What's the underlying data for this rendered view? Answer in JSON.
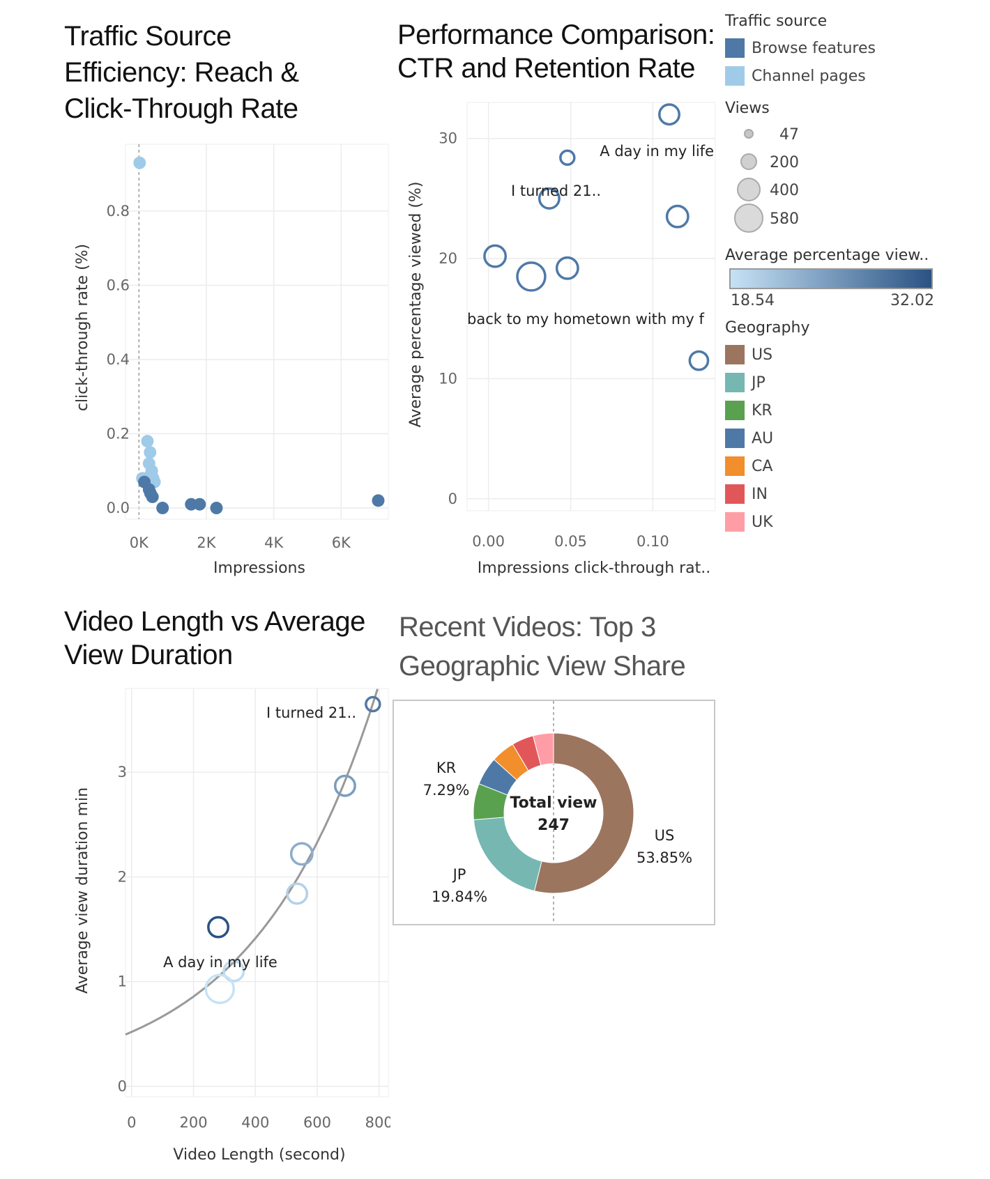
{
  "charts": {
    "traffic": {
      "title": "Traffic Source Efficiency: Reach & Click-Through Rate",
      "title_lines": [
        "Traffic Source",
        "Efficiency: Reach &",
        "Click-Through Rate"
      ],
      "xlabel": "Impressions",
      "ylabel": "click-through rate (%)",
      "x_ticks": [
        "0K",
        "2K",
        "4K",
        "6K"
      ],
      "y_ticks": [
        "0.0",
        "0.2",
        "0.4",
        "0.6",
        "0.8"
      ]
    },
    "performance": {
      "title_lines": [
        "Performance Comparison:",
        "CTR and Retention Rate"
      ],
      "xlabel": "Impressions click-through rat..",
      "ylabel": "Average percentage viewed (%)",
      "x_ticks": [
        "0.00",
        "0.05",
        "0.10"
      ],
      "y_ticks": [
        "0",
        "10",
        "20",
        "30"
      ],
      "annotations": [
        "A day in my life",
        "I turned 21..",
        "back to my hometown with my f"
      ]
    },
    "length": {
      "title_lines": [
        "Video Length vs Average",
        "View Duration"
      ],
      "xlabel": "Video Length (second)",
      "ylabel": "Average view duration min",
      "x_ticks": [
        "0",
        "200",
        "400",
        "600",
        "800"
      ],
      "y_ticks": [
        "0",
        "1",
        "2",
        "3"
      ],
      "annotations": [
        "I turned 21..",
        "A day in my life"
      ]
    },
    "geo": {
      "title_lines": [
        "Recent Videos: Top 3",
        "Geographic View Share"
      ],
      "center_label": "Total view",
      "center_value": "247",
      "labels": [
        {
          "name": "US",
          "pct": "53.85%"
        },
        {
          "name": "JP",
          "pct": "19.84%"
        },
        {
          "name": "KR",
          "pct": "7.29%"
        }
      ]
    }
  },
  "legend": {
    "traffic_title": "Traffic source",
    "traffic_items": [
      {
        "label": "Browse features",
        "color": "#4e79a7"
      },
      {
        "label": "Channel pages",
        "color": "#a0cbe8"
      }
    ],
    "views_title": "Views",
    "views_items": [
      "47",
      "200",
      "400",
      "580"
    ],
    "gradient_title": "Average percentage view..",
    "gradient_min": "18.54",
    "gradient_max": "32.02",
    "geo_title": "Geography",
    "geo_items": [
      {
        "label": "US",
        "color": "#9c755f"
      },
      {
        "label": "JP",
        "color": "#76b7b2"
      },
      {
        "label": "KR",
        "color": "#59a14f"
      },
      {
        "label": "AU",
        "color": "#4e79a7"
      },
      {
        "label": "CA",
        "color": "#f28e2b"
      },
      {
        "label": "IN",
        "color": "#e15759"
      },
      {
        "label": "UK",
        "color": "#ff9da7"
      }
    ]
  },
  "chart_data": [
    {
      "type": "scatter",
      "title": "Traffic Source Efficiency: Reach & Click-Through Rate",
      "xlabel": "Impressions",
      "ylabel": "click-through rate (%)",
      "xlim": [
        -400,
        7400
      ],
      "ylim": [
        -0.03,
        0.98
      ],
      "grid": true,
      "series": [
        {
          "name": "Channel pages",
          "color": "#a0cbe8",
          "x": [
            20,
            250,
            330,
            300,
            380,
            100,
            420,
            460,
            200,
            350
          ],
          "y": [
            0.93,
            0.18,
            0.15,
            0.12,
            0.1,
            0.08,
            0.08,
            0.07,
            0.07,
            0.09
          ]
        },
        {
          "name": "Browse features",
          "color": "#4e79a7",
          "x": [
            160,
            300,
            340,
            400,
            700,
            1550,
            1800,
            2300,
            7100
          ],
          "y": [
            0.07,
            0.05,
            0.04,
            0.03,
            0.0,
            0.01,
            0.01,
            0.0,
            0.02
          ]
        }
      ]
    },
    {
      "type": "scatter",
      "title": "Performance Comparison: CTR and Retention Rate",
      "xlabel": "Impressions click-through rat..",
      "ylabel": "Average percentage viewed (%)",
      "xlim": [
        -0.013,
        0.138
      ],
      "ylim": [
        -1,
        33
      ],
      "grid": true,
      "points": [
        {
          "x": 0.11,
          "y": 32.0,
          "views": 200,
          "label": "A day in my life"
        },
        {
          "x": 0.048,
          "y": 28.4,
          "views": 47,
          "label": "I turned 21.."
        },
        {
          "x": 0.037,
          "y": 25.0,
          "views": 200
        },
        {
          "x": 0.115,
          "y": 23.5,
          "views": 250
        },
        {
          "x": 0.004,
          "y": 20.2,
          "views": 250
        },
        {
          "x": 0.026,
          "y": 18.5,
          "views": 580,
          "label": "back to my hometown with my f"
        },
        {
          "x": 0.048,
          "y": 19.2,
          "views": 250
        },
        {
          "x": 0.128,
          "y": 11.5,
          "views": 150
        }
      ]
    },
    {
      "type": "scatter",
      "title": "Video Length vs Average View Duration",
      "xlabel": "Video Length (second)",
      "ylabel": "Average view duration min",
      "xlim": [
        -20,
        830
      ],
      "ylim": [
        -0.1,
        3.8
      ],
      "grid": true,
      "points": [
        {
          "x": 780,
          "y": 3.65,
          "views": 47,
          "apv": 28.4,
          "label": "I turned 21.."
        },
        {
          "x": 690,
          "y": 2.87,
          "views": 200,
          "apv": 25.0
        },
        {
          "x": 550,
          "y": 2.22,
          "views": 250,
          "apv": 23.5
        },
        {
          "x": 535,
          "y": 1.84,
          "views": 200,
          "apv": 20.2
        },
        {
          "x": 280,
          "y": 1.52,
          "views": 200,
          "apv": 32.0,
          "label": "A day in my life"
        },
        {
          "x": 330,
          "y": 1.1,
          "views": 200,
          "apv": 19.2
        },
        {
          "x": 285,
          "y": 0.93,
          "views": 580,
          "apv": 18.54
        }
      ],
      "trend": {
        "type": "exponential",
        "a": 0.52,
        "b": 0.0025
      }
    },
    {
      "type": "pie",
      "title": "Recent Videos: Top 3 Geographic View Share",
      "center_text": "Total view 247",
      "slices": [
        {
          "label": "US",
          "value": 53.85,
          "color": "#9c755f"
        },
        {
          "label": "JP",
          "value": 19.84,
          "color": "#76b7b2"
        },
        {
          "label": "KR",
          "value": 7.29,
          "color": "#59a14f"
        },
        {
          "label": "AU",
          "value": 5.7,
          "color": "#4e79a7"
        },
        {
          "label": "CA",
          "value": 4.8,
          "color": "#f28e2b"
        },
        {
          "label": "IN",
          "value": 4.4,
          "color": "#e15759"
        },
        {
          "label": "UK",
          "value": 4.12,
          "color": "#ff9da7"
        }
      ]
    }
  ]
}
